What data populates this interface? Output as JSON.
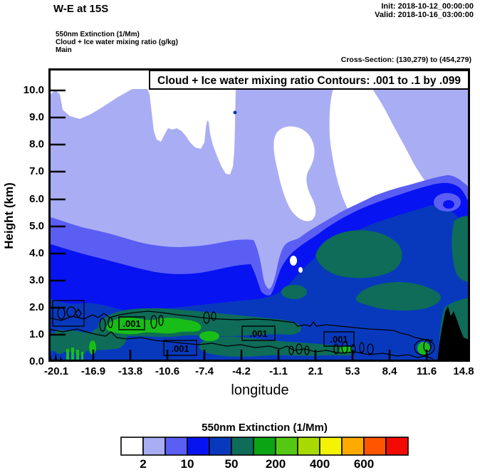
{
  "header": {
    "title": "W-E at 15S",
    "init": "Init: 2018-10-12_00:00:00",
    "valid": "Valid: 2018-10-16_03:00:00",
    "field_line_1": "550nm Extinction   (1/Mm)",
    "field_line_2": "Cloud + Ice water mixing ratio   (g/kg)",
    "field_line_3": "Main",
    "cross_section": "Cross-Section: (130,279) to (454,279)"
  },
  "plot": {
    "title": "Cloud + Ice water mixing ratio Contours: .001 to .1 by .099",
    "xlabel": "longitude",
    "ylabel": "Height (km)",
    "x_tick_labels": [
      "-20.1",
      "-16.9",
      "-13.8",
      "-10.6",
      "-7.4",
      "-4.2",
      "-1.1",
      "2.1",
      "5.3",
      "8.4",
      "11.6",
      "14.8"
    ],
    "y_tick_labels": [
      "10.0",
      "9.0",
      "8.0",
      "7.0",
      "6.0",
      "5.0",
      "4.0",
      "3.0",
      "2.0",
      "1.0",
      "0.0"
    ],
    "contour_label": ".001"
  },
  "legend": {
    "title": "550nm Extinction  (1/Mm)",
    "labels": [
      "2",
      "10",
      "50",
      "200",
      "400",
      "600"
    ],
    "colors": [
      "#ffffff",
      "#a9adf4",
      "#5a5ef3",
      "#0813f2",
      "#0839bc",
      "#0e6c58",
      "#0ba414",
      "#55c814",
      "#a8da00",
      "#f3f303",
      "#ffaa00",
      "#ff5500",
      "#f30b00"
    ]
  },
  "colors": {
    "clear": "#ffffff",
    "lavender": "#a9adf4",
    "medium_blue": "#5a5ef3",
    "bright_blue": "#0813f2",
    "navy": "#0839bc",
    "teal": "#0e6c58",
    "green": "#19bd17",
    "terrain": "#000000"
  },
  "chart_data": {
    "type": "heatmap",
    "title": "Cloud + Ice water mixing ratio Contours: .001 to .1 by .099",
    "xlabel": "longitude",
    "ylabel": "Height (km)",
    "x_ticks": [
      -20.1,
      -16.9,
      -13.8,
      -10.6,
      -7.4,
      -4.2,
      -1.1,
      2.1,
      5.3,
      8.4,
      11.6,
      14.8
    ],
    "y_ticks": [
      0,
      1,
      2,
      3,
      4,
      5,
      6,
      7,
      8,
      9,
      10
    ],
    "xlim": [
      -20.1,
      14.8
    ],
    "ylim": [
      0,
      10.8
    ],
    "fill_field": "550nm Extinction (1/Mm)",
    "colorbar_tick_labels": [
      2,
      10,
      50,
      200,
      400,
      600
    ],
    "colorbar_colors": [
      "#ffffff",
      "#a9adf4",
      "#5a5ef3",
      "#0813f2",
      "#0839bc",
      "#0e6c58",
      "#0ba414",
      "#55c814",
      "#a8da00",
      "#f3f303",
      "#ffaa00",
      "#ff5500",
      "#f30b00"
    ],
    "contour_field": "Cloud + Ice water mixing ratio (g/kg)",
    "contour_levels": ".001 to .1 by .099",
    "contour_point_labels": [
      ".001",
      ".001",
      ".001",
      ".001"
    ],
    "features": [
      "Light lavender extinction (2-5 /Mm) fills most of the section from ~3.5 km up to ~10 km with wavy cloud-top boundary near 9.5-10 km",
      "Clear (white) air above ~10 km, in notches near x=-8 to -5 at 8-9 km, and in a wedge descending from 10 km at x=3 to ~5.5 km at x=9",
      "Extinction increases downward: medium blue then bright blue bands near 2.5-3.5 km on the left, sloping up to ~6 km at the eastern edge",
      "Dark navy (20-50 /Mm) dominates below ~2.5 km with dark teal-green patches (50-100 /Mm) at 0.5-1.5 km and around 3-4 km on the east side",
      "Bright green maxima (100-200 /Mm) in a shallow layer near 0.5-1 km between x=-17 and -10",
      ".001 g/kg cloud+ice mixing-ratio contour runs near 1 km across the section with small closed cells; labels at roughly x=-14, -10.5, -4, 2",
      "Black terrain silhouette rises to ~2 km near x=13-14; small terrain spikes at the western edge"
    ]
  }
}
